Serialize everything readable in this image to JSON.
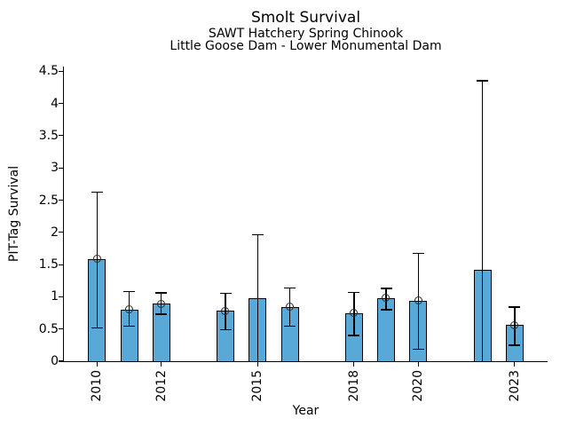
{
  "chart_data": {
    "type": "bar",
    "title": "Smolt Survival",
    "subtitle1": "SAWT Hatchery Spring Chinook",
    "subtitle2": "Little Goose Dam - Lower Monumental Dam",
    "xlabel": "Year",
    "ylabel": "PIT-Tag Survival",
    "ylim": [
      0,
      4.5
    ],
    "xlim": [
      2009,
      2024
    ],
    "grid": false,
    "legend": "none",
    "bar_color": "#58A9D7",
    "bar_edge_color": "#000000",
    "error_bar_color": "#000000",
    "ytick_values": [
      0,
      0.5,
      1,
      1.5,
      2,
      2.5,
      3,
      3.5,
      4,
      4.5
    ],
    "ytick_labels": [
      "0",
      "0.5",
      "1",
      "1.5",
      "2",
      "2.5",
      "3",
      "3.5",
      "4",
      "4.5"
    ],
    "xtick_years": [
      2010,
      2012,
      2015,
      2018,
      2020,
      2023
    ],
    "xtick_labels": [
      "2010",
      "2012",
      "2015",
      "2018",
      "2020",
      "2023"
    ],
    "series": [
      {
        "year": 2010,
        "value": 1.58,
        "lo": 0.52,
        "hi": 2.62,
        "marker": true
      },
      {
        "year": 2011,
        "value": 0.8,
        "lo": 0.54,
        "hi": 1.08,
        "marker": true
      },
      {
        "year": 2012,
        "value": 0.89,
        "lo": 0.73,
        "hi": 1.06,
        "marker": true
      },
      {
        "year": 2014,
        "value": 0.78,
        "lo": 0.49,
        "hi": 1.05,
        "marker": true
      },
      {
        "year": 2015,
        "value": 0.98,
        "lo": 0.0,
        "hi": 1.96,
        "marker": false
      },
      {
        "year": 2016,
        "value": 0.84,
        "lo": 0.54,
        "hi": 1.14,
        "marker": true
      },
      {
        "year": 2018,
        "value": 0.74,
        "lo": 0.4,
        "hi": 1.07,
        "marker": true
      },
      {
        "year": 2019,
        "value": 0.98,
        "lo": 0.8,
        "hi": 1.13,
        "marker": true
      },
      {
        "year": 2020,
        "value": 0.94,
        "lo": 0.19,
        "hi": 1.67,
        "marker": true
      },
      {
        "year": 2022,
        "value": 1.42,
        "lo": 0.0,
        "hi": 4.35,
        "marker": false
      },
      {
        "year": 2023,
        "value": 0.56,
        "lo": 0.25,
        "hi": 0.84,
        "marker": true
      }
    ]
  }
}
